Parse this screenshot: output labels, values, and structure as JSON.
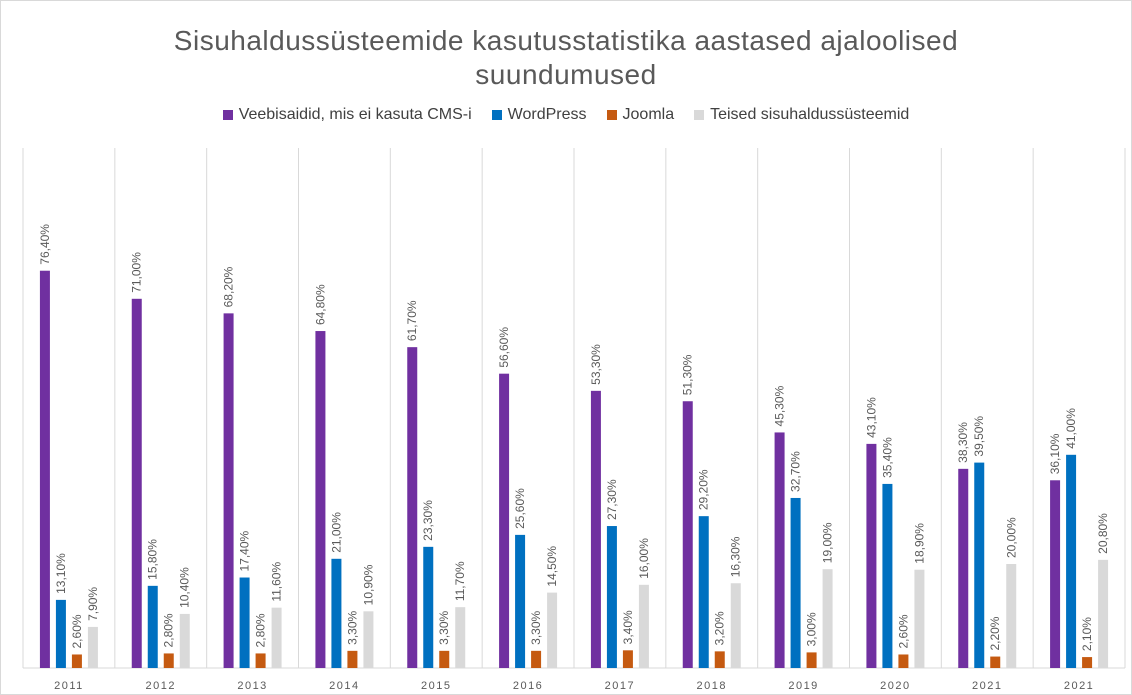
{
  "chart_data": {
    "type": "bar",
    "title": "Sisuhaldussüsteemide kasutusstatistika aastased ajaloolised suundumused",
    "categories": [
      "2011",
      "2012",
      "2013",
      "2014",
      "2015",
      "2016",
      "2017",
      "2018",
      "2019",
      "2020",
      "2021",
      "2021"
    ],
    "ylim": [
      0,
      100
    ],
    "grid": true,
    "legend": "top",
    "series": [
      {
        "name": "Veebisaidid, mis ei kasuta CMS-i",
        "color": "#7030a0",
        "values": [
          76.4,
          71.0,
          68.2,
          64.8,
          61.7,
          56.6,
          53.3,
          51.3,
          45.3,
          43.1,
          38.3,
          36.1
        ],
        "value_labels": [
          "76,40%",
          "71,00%",
          "68,20%",
          "64,80%",
          "61,70%",
          "56,60%",
          "53,30%",
          "51,30%",
          "45,30%",
          "43,10%",
          "38,30%",
          "36,10%"
        ]
      },
      {
        "name": "WordPress",
        "color": "#0070c0",
        "values": [
          13.1,
          15.8,
          17.4,
          21.0,
          23.3,
          25.6,
          27.3,
          29.2,
          32.7,
          35.4,
          39.5,
          41.0
        ],
        "value_labels": [
          "13,10%",
          "15,80%",
          "17,40%",
          "21,00%",
          "23,30%",
          "25,60%",
          "27,30%",
          "29,20%",
          "32,70%",
          "35,40%",
          "39,50%",
          "41,00%"
        ]
      },
      {
        "name": "Joomla",
        "color": "#c55a11",
        "values": [
          2.6,
          2.8,
          2.8,
          3.3,
          3.3,
          3.3,
          3.4,
          3.2,
          3.0,
          2.6,
          2.2,
          2.1
        ],
        "value_labels": [
          "2,60%",
          "2,80%",
          "2,80%",
          "3,30%",
          "3,30%",
          "3,30%",
          "3,40%",
          "3,20%",
          "3,00%",
          "2,60%",
          "2,20%",
          "2,10%"
        ]
      },
      {
        "name": "Teised sisuhaldussüsteemid",
        "color": "#d9d9d9",
        "values": [
          7.9,
          10.4,
          11.6,
          10.9,
          11.7,
          14.5,
          16.0,
          16.3,
          19.0,
          18.9,
          20.0,
          20.8
        ],
        "value_labels": [
          "7,90%",
          "10,40%",
          "11,60%",
          "10,90%",
          "11,70%",
          "14,50%",
          "16,00%",
          "16,30%",
          "19,00%",
          "18,90%",
          "20,00%",
          "20,80%"
        ]
      }
    ]
  }
}
